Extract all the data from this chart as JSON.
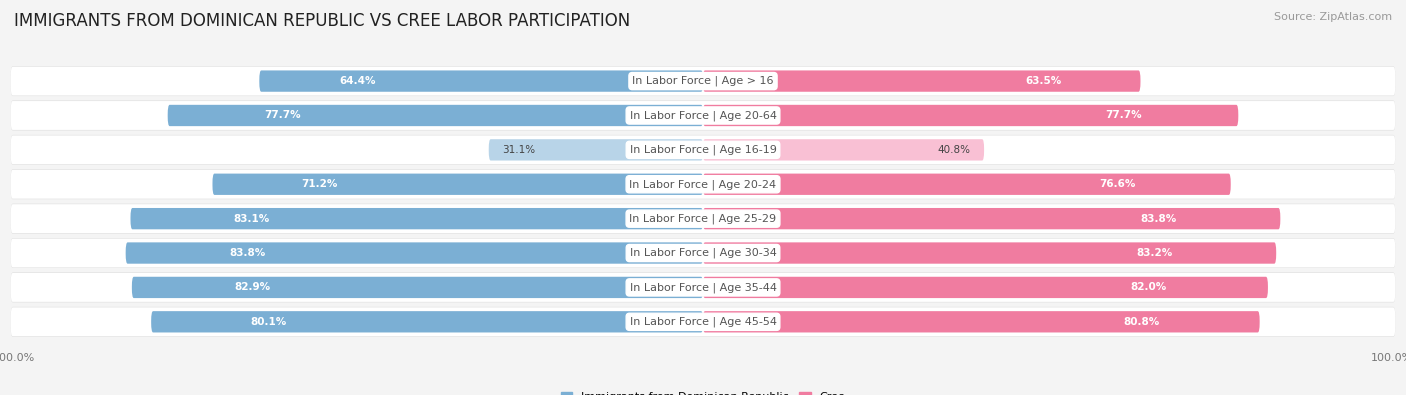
{
  "title": "IMMIGRANTS FROM DOMINICAN REPUBLIC VS CREE LABOR PARTICIPATION",
  "source": "Source: ZipAtlas.com",
  "categories": [
    "In Labor Force | Age > 16",
    "In Labor Force | Age 20-64",
    "In Labor Force | Age 16-19",
    "In Labor Force | Age 20-24",
    "In Labor Force | Age 25-29",
    "In Labor Force | Age 30-34",
    "In Labor Force | Age 35-44",
    "In Labor Force | Age 45-54"
  ],
  "left_values": [
    64.4,
    77.7,
    31.1,
    71.2,
    83.1,
    83.8,
    82.9,
    80.1
  ],
  "right_values": [
    63.5,
    77.7,
    40.8,
    76.6,
    83.8,
    83.2,
    82.0,
    80.8
  ],
  "left_color": "#7BAFD4",
  "left_color_light": "#B8D4E8",
  "right_color": "#F07CA0",
  "right_color_light": "#F9C0D4",
  "center_label_color": "#555555",
  "bg_color": "#f4f4f4",
  "row_bg_color": "#ffffff",
  "row_shadow_color": "#dddddd",
  "left_label": "Immigrants from Dominican Republic",
  "right_label": "Cree",
  "bar_height": 0.62,
  "max_value": 100.0,
  "title_fontsize": 12,
  "label_fontsize": 8.0,
  "value_fontsize": 7.5,
  "axis_label_fontsize": 8,
  "source_fontsize": 8
}
